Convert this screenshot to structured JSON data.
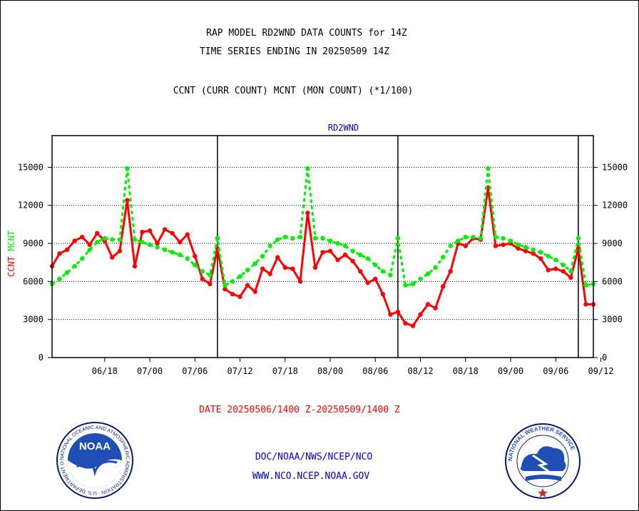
{
  "header": {
    "title_line1": "RAP MODEL RD2WND DATA COUNTS for 14Z",
    "title_line2": "TIME SERIES ENDING IN 20250509 14Z",
    "subtitle": "CCNT (CURR COUNT) MCNT (MON COUNT) (*1/100)"
  },
  "footer": {
    "date_range": "DATE 20250506/1400 Z-20250509/1400 Z",
    "org_path": "DOC/NOAA/NWS/NCEP/NCO",
    "website": "WWW.NCO.NCEP.NOAA.GOV"
  },
  "logos": {
    "noaa_text": "NOAA",
    "noaa_ring": "NATIONAL OCEANIC AND ATMOSPHERIC ADMINISTRATION · U.S. DEPARTMENT OF COMMERCE",
    "nws_ring": "NATIONAL WEATHER SERVICE"
  },
  "colors": {
    "ccnt": "#ff0000",
    "mcnt": "#00ee00",
    "panel_title": "#0000cc",
    "date_text": "#ff0000",
    "link_text": "#0000cc"
  },
  "chart_data": {
    "type": "line",
    "title": "RD2WND",
    "ylabel_parts": [
      "CCNT",
      "MCNT"
    ],
    "ylim": [
      0,
      17500
    ],
    "yticks": [
      0,
      3000,
      6000,
      9000,
      12000,
      15000
    ],
    "ytick_labels": [
      "0",
      "3000",
      "6000",
      "9000",
      "12000",
      "15000"
    ],
    "x_tick_labels": [
      "06/18",
      "07/00",
      "07/06",
      "07/12",
      "07/18",
      "08/00",
      "08/06",
      "08/12",
      "08/18",
      "09/00",
      "09/06",
      "09/12"
    ],
    "grid": "horizontal dotted",
    "day_separators": [
      "07/12",
      "08/12",
      "09/12"
    ],
    "series": [
      {
        "name": "CCNT",
        "values": [
          7200,
          8200,
          8500,
          9200,
          9500,
          8900,
          9800,
          9200,
          7900,
          8400,
          12400,
          7200,
          9900,
          10000,
          9000,
          10100,
          9800,
          9100,
          9700,
          8000,
          6200,
          5800,
          8600,
          5400,
          5000,
          4800,
          5700,
          5200,
          7000,
          6600,
          7900,
          7100,
          7000,
          6000,
          11400,
          7100,
          8300,
          8400,
          7700,
          8100,
          7600,
          6800,
          5900,
          6200,
          5000,
          3400,
          3600,
          2700,
          2500,
          3400,
          4200,
          3900,
          5600,
          6800,
          9000,
          8800,
          9400,
          9300,
          13400,
          8800,
          8900,
          9000,
          8600,
          8400,
          8200,
          7800,
          6900,
          7000,
          6800,
          6300,
          8600,
          4200,
          4200
        ]
      },
      {
        "name": "MCNT",
        "values": [
          5800,
          6200,
          6700,
          7200,
          7800,
          8500,
          9100,
          9400,
          9300,
          9300,
          14900,
          9300,
          9100,
          8900,
          8700,
          8500,
          8300,
          8100,
          7800,
          7300,
          6800,
          6500,
          9400,
          5700,
          6000,
          6400,
          6900,
          7400,
          8000,
          8800,
          9300,
          9500,
          9400,
          9500,
          14900,
          9400,
          9400,
          9200,
          9000,
          8800,
          8400,
          8100,
          7800,
          7300,
          6800,
          6500,
          9400,
          5700,
          5800,
          6200,
          6600,
          7100,
          7900,
          8800,
          9200,
          9500,
          9500,
          9400,
          14900,
          9500,
          9400,
          9200,
          8900,
          8700,
          8500,
          8300,
          8000,
          7700,
          7300,
          6800,
          9400,
          5700,
          5800
        ]
      }
    ]
  }
}
